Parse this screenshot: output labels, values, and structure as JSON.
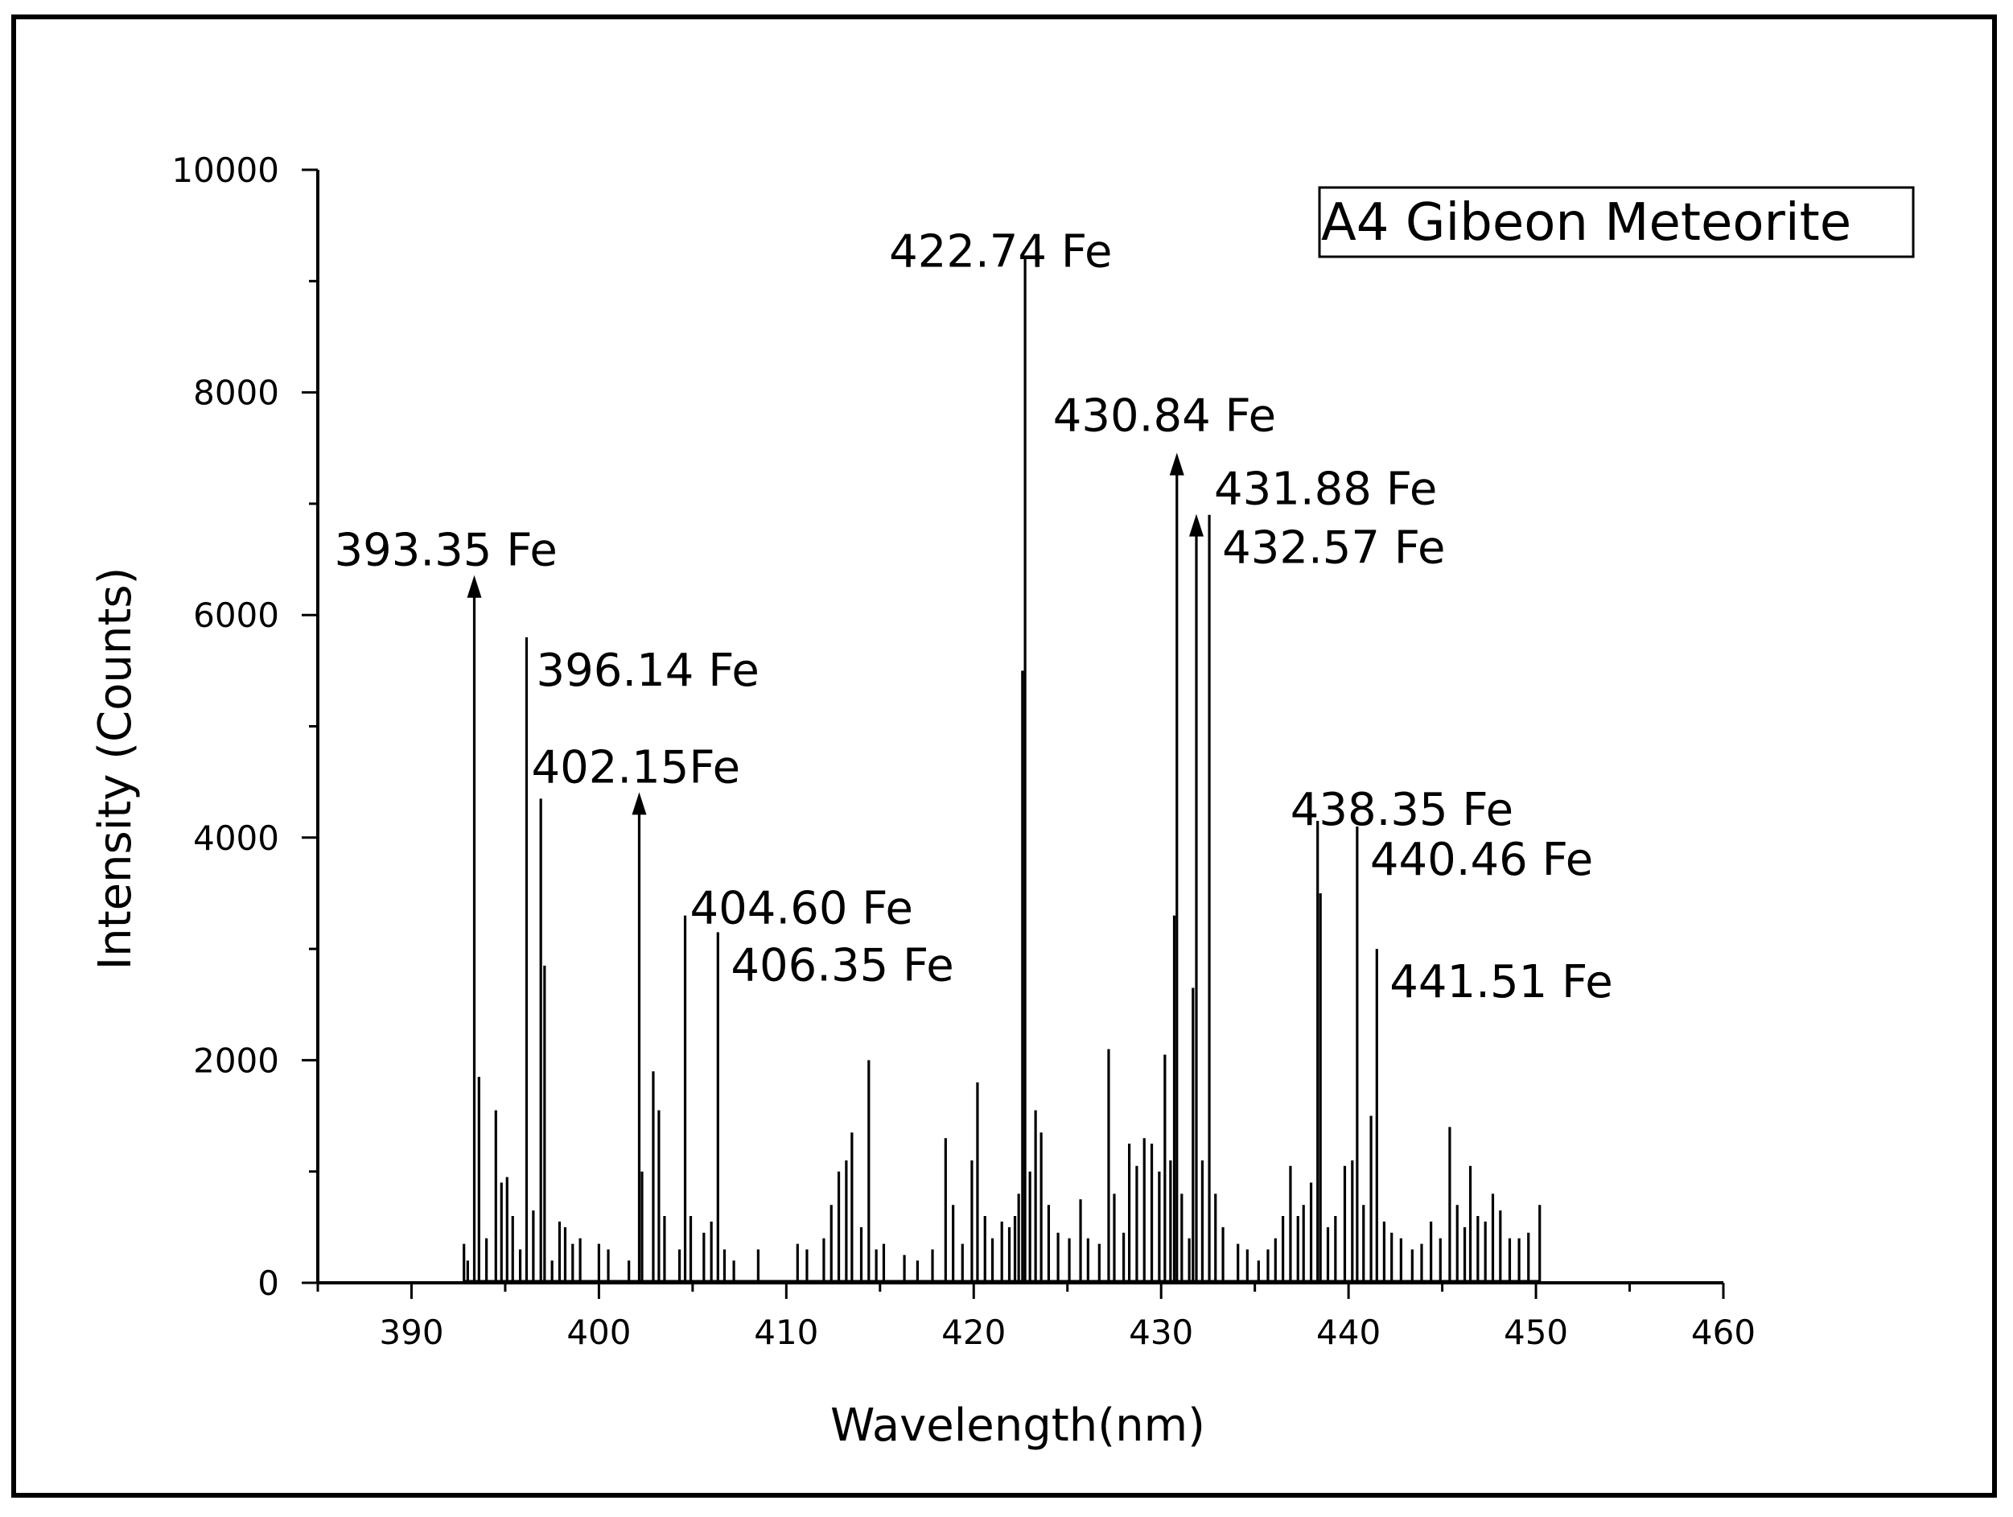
{
  "chart_data": {
    "type": "line",
    "title": "",
    "xlabel": "Wavelength(nm)",
    "ylabel": "Intensity (Counts)",
    "xlim": [
      385,
      460
    ],
    "ylim": [
      0,
      10000
    ],
    "xticks": [
      390,
      400,
      410,
      420,
      430,
      440,
      450,
      460
    ],
    "yticks": [
      0,
      2000,
      4000,
      6000,
      8000,
      10000
    ],
    "legend": {
      "text": "A4 Gibeon Meteorite",
      "placement": "top-right"
    },
    "grid": false,
    "series": [
      {
        "name": "",
        "color": "#000000",
        "peaks": [
          {
            "x": 392.8,
            "y": 350
          },
          {
            "x": 393.0,
            "y": 200
          },
          {
            "x": 393.35,
            "y": 6300
          },
          {
            "x": 393.6,
            "y": 1850
          },
          {
            "x": 394.0,
            "y": 400
          },
          {
            "x": 394.5,
            "y": 1550
          },
          {
            "x": 394.8,
            "y": 900
          },
          {
            "x": 395.1,
            "y": 950
          },
          {
            "x": 395.4,
            "y": 600
          },
          {
            "x": 395.8,
            "y": 300
          },
          {
            "x": 396.14,
            "y": 5800
          },
          {
            "x": 396.5,
            "y": 650
          },
          {
            "x": 396.9,
            "y": 4350
          },
          {
            "x": 397.1,
            "y": 2850
          },
          {
            "x": 397.5,
            "y": 200
          },
          {
            "x": 397.9,
            "y": 550
          },
          {
            "x": 398.2,
            "y": 500
          },
          {
            "x": 398.6,
            "y": 350
          },
          {
            "x": 399.0,
            "y": 400
          },
          {
            "x": 400.0,
            "y": 350
          },
          {
            "x": 400.5,
            "y": 300
          },
          {
            "x": 401.6,
            "y": 200
          },
          {
            "x": 402.15,
            "y": 4350
          },
          {
            "x": 402.3,
            "y": 1000
          },
          {
            "x": 402.9,
            "y": 1900
          },
          {
            "x": 403.2,
            "y": 1550
          },
          {
            "x": 403.5,
            "y": 600
          },
          {
            "x": 404.3,
            "y": 300
          },
          {
            "x": 404.6,
            "y": 3300
          },
          {
            "x": 404.9,
            "y": 600
          },
          {
            "x": 405.6,
            "y": 450
          },
          {
            "x": 406.0,
            "y": 550
          },
          {
            "x": 406.35,
            "y": 3150
          },
          {
            "x": 406.7,
            "y": 300
          },
          {
            "x": 407.2,
            "y": 200
          },
          {
            "x": 408.5,
            "y": 300
          },
          {
            "x": 410.6,
            "y": 350
          },
          {
            "x": 411.1,
            "y": 300
          },
          {
            "x": 412.0,
            "y": 400
          },
          {
            "x": 412.4,
            "y": 700
          },
          {
            "x": 412.8,
            "y": 1000
          },
          {
            "x": 413.2,
            "y": 1100
          },
          {
            "x": 413.5,
            "y": 1350
          },
          {
            "x": 414.0,
            "y": 500
          },
          {
            "x": 414.4,
            "y": 2000
          },
          {
            "x": 414.8,
            "y": 300
          },
          {
            "x": 415.2,
            "y": 350
          },
          {
            "x": 416.3,
            "y": 250
          },
          {
            "x": 417.0,
            "y": 200
          },
          {
            "x": 417.8,
            "y": 300
          },
          {
            "x": 418.5,
            "y": 1300
          },
          {
            "x": 418.9,
            "y": 700
          },
          {
            "x": 419.4,
            "y": 350
          },
          {
            "x": 419.9,
            "y": 1100
          },
          {
            "x": 420.2,
            "y": 1800
          },
          {
            "x": 420.6,
            "y": 600
          },
          {
            "x": 421.0,
            "y": 400
          },
          {
            "x": 421.5,
            "y": 550
          },
          {
            "x": 421.9,
            "y": 500
          },
          {
            "x": 422.2,
            "y": 600
          },
          {
            "x": 422.4,
            "y": 800
          },
          {
            "x": 422.6,
            "y": 5500
          },
          {
            "x": 422.74,
            "y": 9200
          },
          {
            "x": 423.0,
            "y": 1000
          },
          {
            "x": 423.3,
            "y": 1550
          },
          {
            "x": 423.6,
            "y": 1350
          },
          {
            "x": 424.0,
            "y": 700
          },
          {
            "x": 424.5,
            "y": 450
          },
          {
            "x": 425.1,
            "y": 400
          },
          {
            "x": 425.7,
            "y": 750
          },
          {
            "x": 426.1,
            "y": 400
          },
          {
            "x": 426.7,
            "y": 350
          },
          {
            "x": 427.2,
            "y": 2100
          },
          {
            "x": 427.5,
            "y": 800
          },
          {
            "x": 428.0,
            "y": 450
          },
          {
            "x": 428.3,
            "y": 1250
          },
          {
            "x": 428.7,
            "y": 1050
          },
          {
            "x": 429.1,
            "y": 1300
          },
          {
            "x": 429.5,
            "y": 1250
          },
          {
            "x": 429.9,
            "y": 1000
          },
          {
            "x": 430.2,
            "y": 2050
          },
          {
            "x": 430.5,
            "y": 1100
          },
          {
            "x": 430.7,
            "y": 3300
          },
          {
            "x": 430.84,
            "y": 7400
          },
          {
            "x": 431.1,
            "y": 800
          },
          {
            "x": 431.5,
            "y": 400
          },
          {
            "x": 431.7,
            "y": 2650
          },
          {
            "x": 431.88,
            "y": 6850
          },
          {
            "x": 432.2,
            "y": 1100
          },
          {
            "x": 432.57,
            "y": 6900
          },
          {
            "x": 432.9,
            "y": 800
          },
          {
            "x": 433.3,
            "y": 500
          },
          {
            "x": 434.1,
            "y": 350
          },
          {
            "x": 434.6,
            "y": 300
          },
          {
            "x": 435.2,
            "y": 200
          },
          {
            "x": 435.7,
            "y": 300
          },
          {
            "x": 436.1,
            "y": 400
          },
          {
            "x": 436.5,
            "y": 600
          },
          {
            "x": 436.9,
            "y": 1050
          },
          {
            "x": 437.3,
            "y": 600
          },
          {
            "x": 437.6,
            "y": 700
          },
          {
            "x": 438.0,
            "y": 900
          },
          {
            "x": 438.35,
            "y": 4150
          },
          {
            "x": 438.5,
            "y": 3500
          },
          {
            "x": 438.9,
            "y": 500
          },
          {
            "x": 439.3,
            "y": 600
          },
          {
            "x": 439.8,
            "y": 1050
          },
          {
            "x": 440.2,
            "y": 1100
          },
          {
            "x": 440.46,
            "y": 4100
          },
          {
            "x": 440.8,
            "y": 700
          },
          {
            "x": 441.2,
            "y": 1500
          },
          {
            "x": 441.51,
            "y": 3000
          },
          {
            "x": 441.9,
            "y": 550
          },
          {
            "x": 442.3,
            "y": 450
          },
          {
            "x": 442.8,
            "y": 400
          },
          {
            "x": 443.4,
            "y": 300
          },
          {
            "x": 443.9,
            "y": 350
          },
          {
            "x": 444.4,
            "y": 550
          },
          {
            "x": 444.9,
            "y": 400
          },
          {
            "x": 445.4,
            "y": 1400
          },
          {
            "x": 445.8,
            "y": 700
          },
          {
            "x": 446.2,
            "y": 500
          },
          {
            "x": 446.5,
            "y": 1050
          },
          {
            "x": 446.9,
            "y": 600
          },
          {
            "x": 447.3,
            "y": 550
          },
          {
            "x": 447.7,
            "y": 800
          },
          {
            "x": 448.1,
            "y": 650
          },
          {
            "x": 448.6,
            "y": 400
          },
          {
            "x": 449.1,
            "y": 400
          },
          {
            "x": 449.6,
            "y": 450
          },
          {
            "x": 450.2,
            "y": 700
          }
        ]
      }
    ],
    "annotations": [
      {
        "text": "393.35 Fe",
        "x": 393.35,
        "y": 6300,
        "arrow": true
      },
      {
        "text": "396.14 Fe",
        "x": 396.14,
        "y": 5800,
        "arrow": false
      },
      {
        "text": "402.15Fe",
        "x": 402.15,
        "y": 4350,
        "arrow": true
      },
      {
        "text": "404.60 Fe",
        "x": 404.6,
        "y": 3300,
        "arrow": false
      },
      {
        "text": "406.35 Fe",
        "x": 406.35,
        "y": 3150,
        "arrow": false
      },
      {
        "text": "422.74 Fe",
        "x": 422.74,
        "y": 9200,
        "arrow": false
      },
      {
        "text": "430.84 Fe",
        "x": 430.84,
        "y": 7400,
        "arrow": true
      },
      {
        "text": "431.88 Fe",
        "x": 431.88,
        "y": 6850,
        "arrow": true
      },
      {
        "text": "432.57 Fe",
        "x": 432.57,
        "y": 6900,
        "arrow": false
      },
      {
        "text": "438.35 Fe",
        "x": 438.35,
        "y": 4150,
        "arrow": false
      },
      {
        "text": "440.46 Fe",
        "x": 440.46,
        "y": 4100,
        "arrow": false
      },
      {
        "text": "441.51 Fe",
        "x": 441.51,
        "y": 3000,
        "arrow": false
      }
    ]
  }
}
